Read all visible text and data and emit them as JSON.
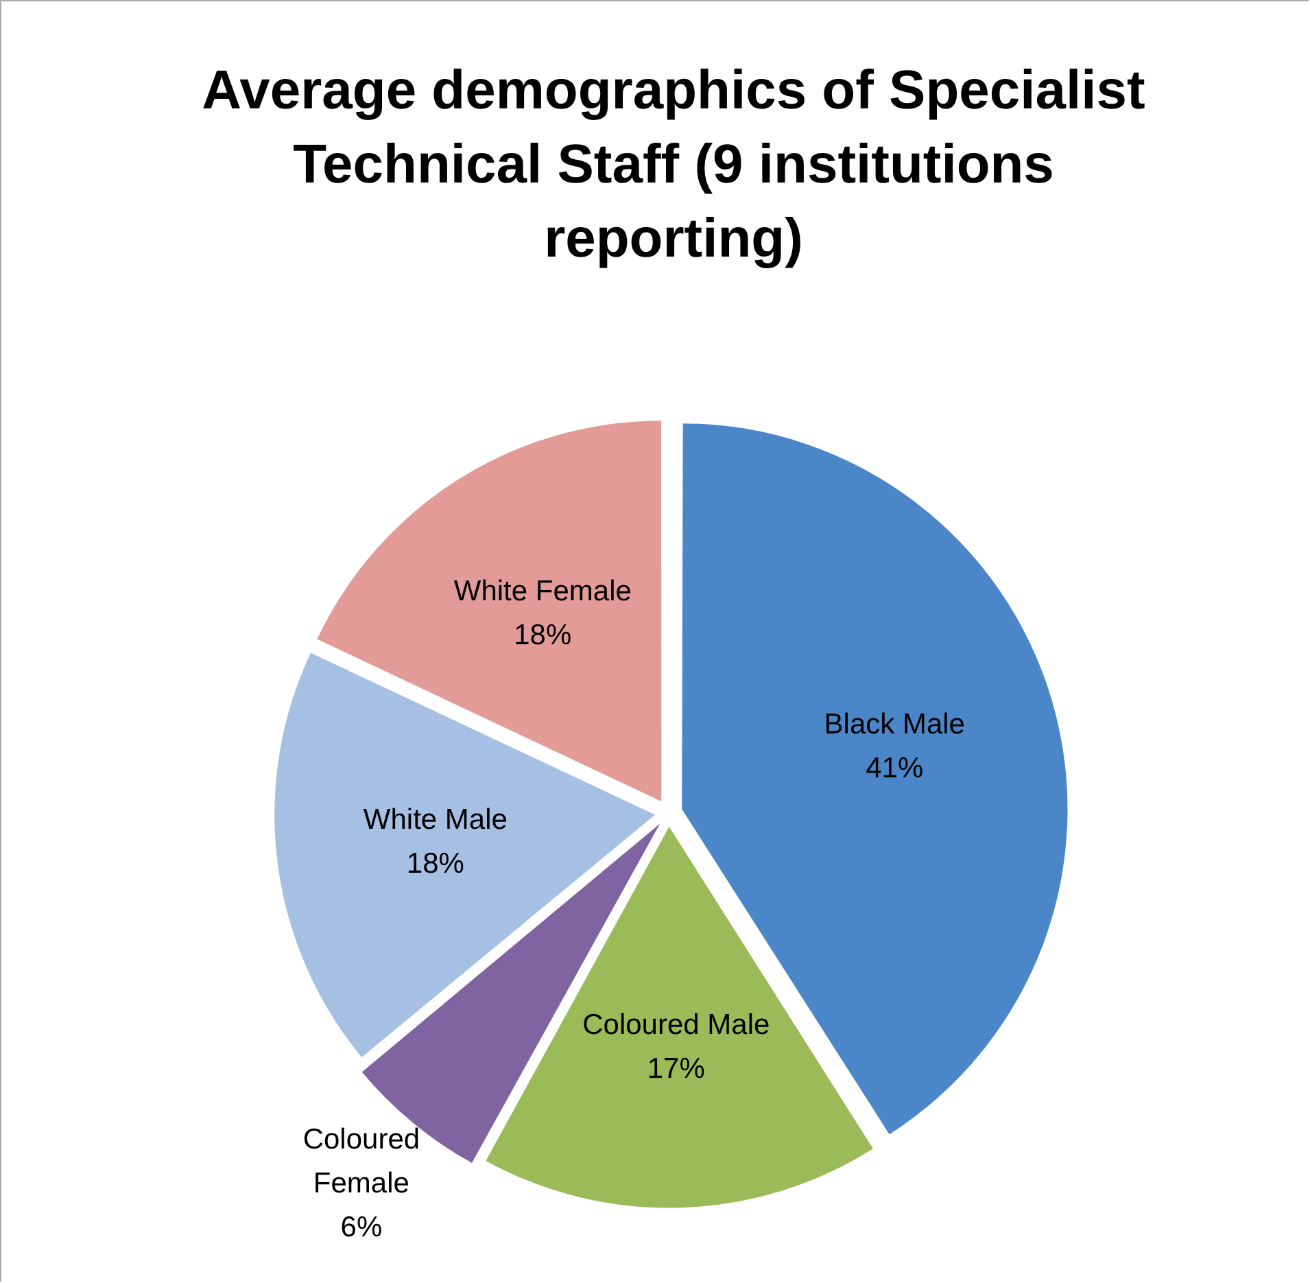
{
  "chart_data": {
    "type": "pie",
    "title": "Average demographics of Specialist Technical Staff (9 institutions reporting)",
    "categories": [
      "Black Male",
      "Coloured Male",
      "Coloured Female",
      "White Male",
      "White Female"
    ],
    "values": [
      41,
      17,
      6,
      18,
      18
    ],
    "colors": [
      "#4a86c8",
      "#9bbb59",
      "#8064a2",
      "#a6c0e4",
      "#e39b98"
    ],
    "value_labels": [
      "41%",
      "17%",
      "6%",
      "18%",
      "18%"
    ],
    "legend": false
  }
}
